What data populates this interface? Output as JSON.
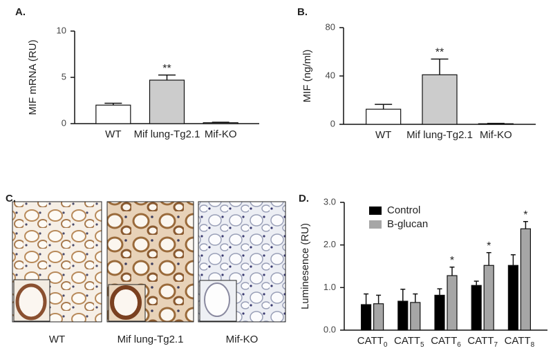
{
  "chart_data": [
    {
      "type": "bar",
      "label": "A.",
      "ylabel": "MIF mRNA (RU)",
      "categories": [
        "WT",
        "Mif lung-Tg2.1",
        "Mif-KO"
      ],
      "values": [
        2.0,
        4.7,
        0.1
      ],
      "errors": [
        0.2,
        0.55,
        0.05
      ],
      "colors": [
        "#ffffff",
        "#cccccc",
        "#ffffff"
      ],
      "ylim": [
        0,
        10
      ],
      "yticks": [
        0,
        5,
        10
      ],
      "annotations": [
        {
          "text": "**",
          "category": "Mif lung-Tg2.1"
        }
      ]
    },
    {
      "type": "bar",
      "label": "B.",
      "ylabel": "MIF (ng/ml)",
      "categories": [
        "WT",
        "Mif lung-Tg2.1",
        "Mif-KO"
      ],
      "values": [
        12.5,
        41,
        0.5
      ],
      "errors": [
        4,
        13,
        0.3
      ],
      "colors": [
        "#ffffff",
        "#cccccc",
        "#ffffff"
      ],
      "ylim": [
        0,
        80
      ],
      "yticks": [
        0,
        40,
        80
      ],
      "annotations": [
        {
          "text": "**",
          "category": "Mif lung-Tg2.1"
        }
      ]
    },
    {
      "type": "micrograph",
      "label": "C.",
      "captions": [
        "WT",
        "Mif lung-Tg2.1",
        "Mif-KO"
      ]
    },
    {
      "type": "bar",
      "label": "D.",
      "ylabel": "Luminesence (RU)",
      "categories": [
        "CATT0",
        "CATT5",
        "CATT6",
        "CATT7",
        "CATT8"
      ],
      "series": [
        {
          "name": "Control",
          "color": "#000000",
          "values": [
            0.6,
            0.68,
            0.82,
            1.05,
            1.52
          ],
          "errors": [
            0.25,
            0.28,
            0.15,
            0.1,
            0.25
          ]
        },
        {
          "name": "B-glucan",
          "color": "#a6a6a6",
          "values": [
            0.62,
            0.65,
            1.28,
            1.52,
            2.38
          ],
          "errors": [
            0.2,
            0.2,
            0.2,
            0.3,
            0.17
          ]
        }
      ],
      "ylim": [
        0,
        3
      ],
      "yticks": [
        {
          "value": 0,
          "label": "0.0"
        },
        {
          "value": 1,
          "label": "1.0"
        },
        {
          "value": 2,
          "label": "2.0"
        },
        {
          "value": 3,
          "label": "3.0"
        }
      ],
      "legend": "top-left",
      "annotations": [
        {
          "text": "*",
          "category": "CATT6",
          "series": "B-glucan"
        },
        {
          "text": "*",
          "category": "CATT7",
          "series": "B-glucan"
        },
        {
          "text": "*",
          "category": "CATT8",
          "series": "B-glucan"
        }
      ]
    }
  ]
}
